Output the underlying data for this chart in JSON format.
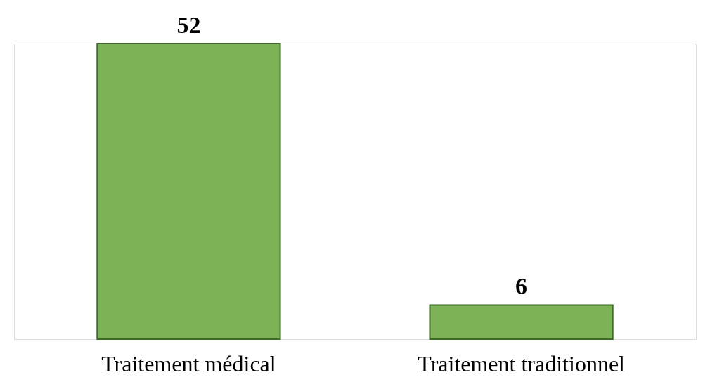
{
  "chart_data": {
    "type": "bar",
    "categories": [
      "Traitement médical",
      "Traitement traditionnel"
    ],
    "values": [
      52,
      6
    ],
    "color": "#7db356",
    "data_labels": true
  }
}
